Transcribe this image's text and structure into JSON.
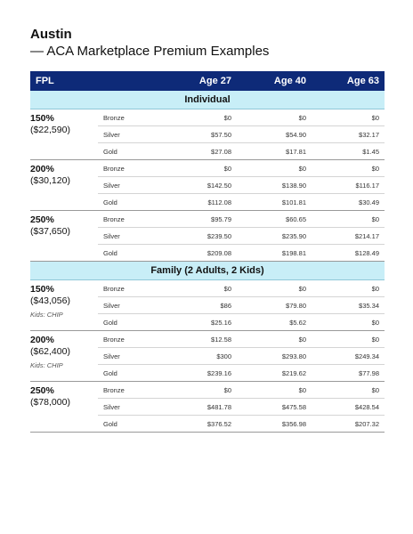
{
  "header": {
    "city": "Austin",
    "subtitle": "— ACA Marketplace Premium Examples"
  },
  "columns": {
    "fpl": "FPL",
    "age27": "Age 27",
    "age40": "Age 40",
    "age63": "Age 63"
  },
  "sections": [
    {
      "title": "Individual",
      "groups": [
        {
          "fpl": "150%",
          "income": "($22,590)",
          "note": "",
          "rows": [
            {
              "tier": "Bronze",
              "v": [
                "$0",
                "$0",
                "$0"
              ]
            },
            {
              "tier": "Silver",
              "v": [
                "$57.50",
                "$54.90",
                "$32.17"
              ]
            },
            {
              "tier": "Gold",
              "v": [
                "$27.08",
                "$17.81",
                "$1.45"
              ]
            }
          ]
        },
        {
          "fpl": "200%",
          "income": "($30,120)",
          "note": "",
          "rows": [
            {
              "tier": "Bronze",
              "v": [
                "$0",
                "$0",
                "$0"
              ]
            },
            {
              "tier": "Silver",
              "v": [
                "$142.50",
                "$138.90",
                "$116.17"
              ]
            },
            {
              "tier": "Gold",
              "v": [
                "$112.08",
                "$101.81",
                "$30.49"
              ]
            }
          ]
        },
        {
          "fpl": "250%",
          "income": "($37,650)",
          "note": "",
          "rows": [
            {
              "tier": "Bronze",
              "v": [
                "$95.79",
                "$60.65",
                "$0"
              ]
            },
            {
              "tier": "Silver",
              "v": [
                "$239.50",
                "$235.90",
                "$214.17"
              ]
            },
            {
              "tier": "Gold",
              "v": [
                "$209.08",
                "$198.81",
                "$128.49"
              ]
            }
          ]
        }
      ]
    },
    {
      "title": "Family (2 Adults, 2 Kids)",
      "groups": [
        {
          "fpl": "150%",
          "income": "($43,056)",
          "note": "Kids: CHIP",
          "rows": [
            {
              "tier": "Bronze",
              "v": [
                "$0",
                "$0",
                "$0"
              ]
            },
            {
              "tier": "Silver",
              "v": [
                "$86",
                "$79.80",
                "$35.34"
              ]
            },
            {
              "tier": "Gold",
              "v": [
                "$25.16",
                "$5.62",
                "$0"
              ]
            }
          ]
        },
        {
          "fpl": "200%",
          "income": "($62,400)",
          "note": "Kids: CHIP",
          "rows": [
            {
              "tier": "Bronze",
              "v": [
                "$12.58",
                "$0",
                "$0"
              ]
            },
            {
              "tier": "Silver",
              "v": [
                "$300",
                "$293.80",
                "$249.34"
              ]
            },
            {
              "tier": "Gold",
              "v": [
                "$239.16",
                "$219.62",
                "$77.98"
              ]
            }
          ]
        },
        {
          "fpl": "250%",
          "income": "($78,000)",
          "note": "",
          "rows": [
            {
              "tier": "Bronze",
              "v": [
                "$0",
                "$0",
                "$0"
              ]
            },
            {
              "tier": "Silver",
              "v": [
                "$481.78",
                "$475.58",
                "$428.54"
              ]
            },
            {
              "tier": "Gold",
              "v": [
                "$376.52",
                "$356.98",
                "$207.32"
              ]
            }
          ]
        }
      ]
    }
  ]
}
